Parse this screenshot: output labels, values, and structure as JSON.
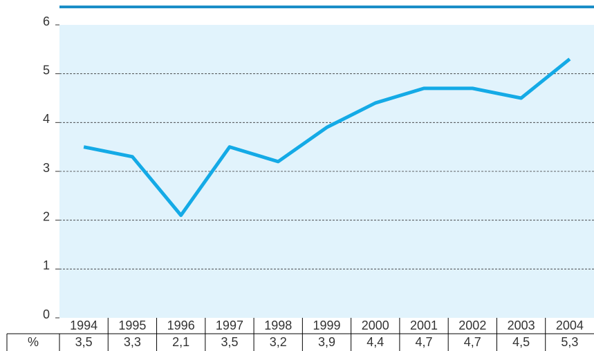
{
  "chart_data": {
    "type": "line",
    "categories": [
      "1994",
      "1995",
      "1996",
      "1997",
      "1998",
      "1999",
      "2000",
      "2001",
      "2002",
      "2003",
      "2004"
    ],
    "series": [
      {
        "name": "%",
        "color": "#14aae6",
        "values": [
          3.5,
          3.3,
          2.1,
          3.5,
          3.2,
          3.9,
          4.4,
          4.7,
          4.7,
          4.5,
          5.3
        ],
        "value_labels": [
          "3,5",
          "3,3",
          "2,1",
          "3,5",
          "3,2",
          "3,9",
          "4,4",
          "4,7",
          "4,7",
          "4,5",
          "5,3"
        ]
      }
    ],
    "ylim": [
      0,
      6
    ],
    "yticks": [
      0,
      1,
      2,
      3,
      4,
      5,
      6
    ],
    "grid": true,
    "plot_color": "#e1f3fc",
    "rule_color": "#1b8ec7"
  }
}
